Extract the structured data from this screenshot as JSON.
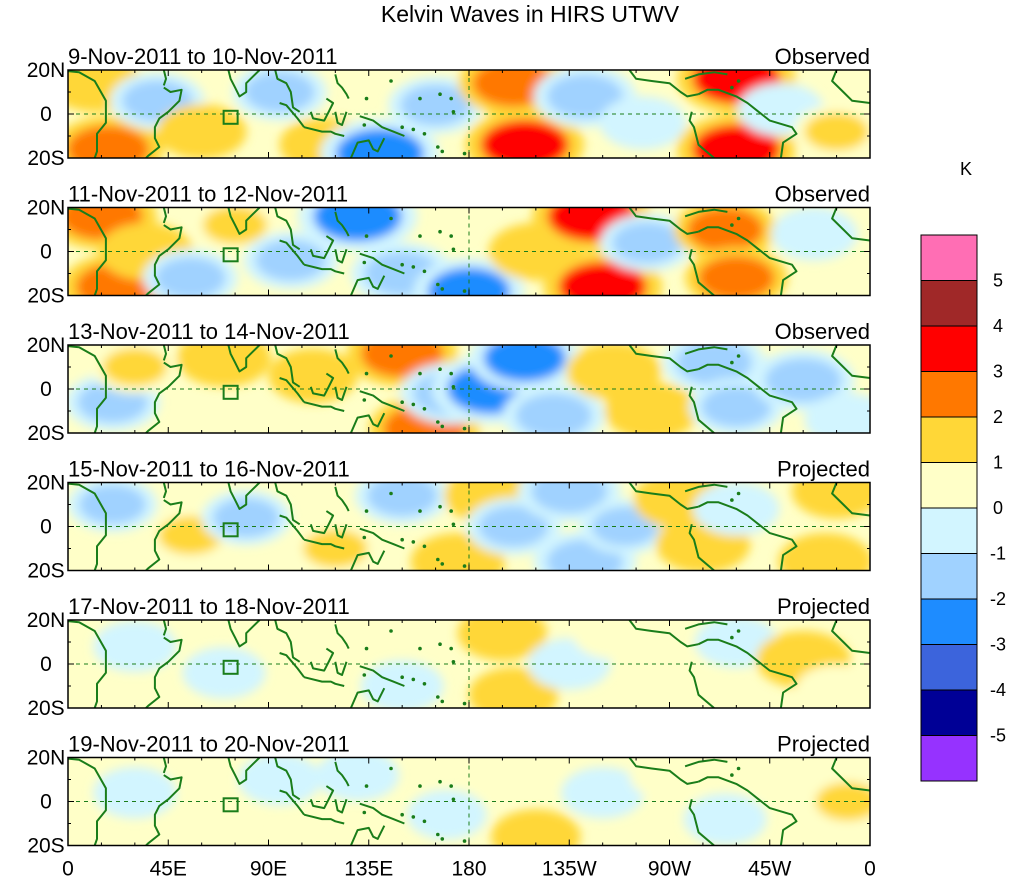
{
  "chart_data": {
    "type": "heatmap",
    "title": "Kelvin Waves in HIRS UTWV",
    "units": "K",
    "xlabel": "",
    "ylabel": "",
    "x_ticks": [
      "0",
      "45E",
      "90E",
      "135E",
      "180",
      "135W",
      "90W",
      "45W",
      "0"
    ],
    "y_ticks": [
      "20N",
      "0",
      "20S"
    ],
    "xlim": [
      0,
      360
    ],
    "ylim": [
      -20,
      20
    ],
    "colorbar": {
      "labels": [
        "5",
        "4",
        "3",
        "2",
        "1",
        "0",
        "-1",
        "-2",
        "-3",
        "-4",
        "-5"
      ],
      "colors": [
        "#ff6eb4",
        "#a02828",
        "#ff0000",
        "#ff7800",
        "#ffd737",
        "#ffffc8",
        "#d2f5ff",
        "#a0d2ff",
        "#1e8cff",
        "#3c64dc",
        "#000096",
        "#9632ff"
      ]
    },
    "panels": [
      {
        "date_range": "9-Nov-2011 to 10-Nov-2011",
        "status": "Observed",
        "features": [
          {
            "lon": 12,
            "lat": 14,
            "value": 1.5
          },
          {
            "lon": 18,
            "lat": -16,
            "value": 2.5
          },
          {
            "lon": 40,
            "lat": 6,
            "value": -1.5
          },
          {
            "lon": 60,
            "lat": -8,
            "value": 1.2
          },
          {
            "lon": 95,
            "lat": 10,
            "value": -1.5
          },
          {
            "lon": 115,
            "lat": -14,
            "value": 1.2
          },
          {
            "lon": 140,
            "lat": -18,
            "value": -3
          },
          {
            "lon": 165,
            "lat": 4,
            "value": -1.5
          },
          {
            "lon": 200,
            "lat": 14,
            "value": 2.5
          },
          {
            "lon": 205,
            "lat": -14,
            "value": 3
          },
          {
            "lon": 232,
            "lat": 8,
            "value": -2
          },
          {
            "lon": 258,
            "lat": -4,
            "value": -1
          },
          {
            "lon": 300,
            "lat": 16,
            "value": 3
          },
          {
            "lon": 300,
            "lat": -16,
            "value": 3
          },
          {
            "lon": 320,
            "lat": 2,
            "value": -1
          },
          {
            "lon": 345,
            "lat": -8,
            "value": 1
          }
        ]
      },
      {
        "date_range": "11-Nov-2011 to 12-Nov-2011",
        "status": "Observed",
        "features": [
          {
            "lon": 15,
            "lat": 16,
            "value": 2.5
          },
          {
            "lon": 22,
            "lat": -16,
            "value": 2.5
          },
          {
            "lon": 35,
            "lat": 0,
            "value": 1.5
          },
          {
            "lon": 55,
            "lat": -12,
            "value": -1.5
          },
          {
            "lon": 75,
            "lat": 12,
            "value": 1
          },
          {
            "lon": 100,
            "lat": -4,
            "value": -1.5
          },
          {
            "lon": 130,
            "lat": 16,
            "value": -3
          },
          {
            "lon": 150,
            "lat": -10,
            "value": -2
          },
          {
            "lon": 180,
            "lat": -18,
            "value": -2.5
          },
          {
            "lon": 210,
            "lat": 0,
            "value": 1.5
          },
          {
            "lon": 235,
            "lat": 16,
            "value": 3
          },
          {
            "lon": 240,
            "lat": -16,
            "value": 3
          },
          {
            "lon": 260,
            "lat": 4,
            "value": -1.5
          },
          {
            "lon": 295,
            "lat": 10,
            "value": 2
          },
          {
            "lon": 300,
            "lat": -12,
            "value": 2
          },
          {
            "lon": 335,
            "lat": 8,
            "value": -1
          }
        ]
      },
      {
        "date_range": "13-Nov-2011 to 14-Nov-2011",
        "status": "Observed",
        "features": [
          {
            "lon": 20,
            "lat": -6,
            "value": -1.5
          },
          {
            "lon": 30,
            "lat": 10,
            "value": 1
          },
          {
            "lon": 70,
            "lat": 14,
            "value": 1.5
          },
          {
            "lon": 110,
            "lat": 6,
            "value": 1.2
          },
          {
            "lon": 150,
            "lat": 16,
            "value": 2.5
          },
          {
            "lon": 160,
            "lat": -18,
            "value": 2.5
          },
          {
            "lon": 172,
            "lat": -2,
            "value": -2
          },
          {
            "lon": 190,
            "lat": 0,
            "value": -3
          },
          {
            "lon": 205,
            "lat": 14,
            "value": -2.5
          },
          {
            "lon": 218,
            "lat": -12,
            "value": -2
          },
          {
            "lon": 245,
            "lat": 8,
            "value": 1.5
          },
          {
            "lon": 262,
            "lat": -10,
            "value": 1.5
          },
          {
            "lon": 290,
            "lat": 12,
            "value": -2
          },
          {
            "lon": 300,
            "lat": -8,
            "value": -1.5
          },
          {
            "lon": 330,
            "lat": 4,
            "value": -2
          },
          {
            "lon": 350,
            "lat": -14,
            "value": -1
          }
        ]
      },
      {
        "date_range": "15-Nov-2011 to 16-Nov-2011",
        "status": "Projected",
        "features": [
          {
            "lon": 20,
            "lat": 10,
            "value": -1.2
          },
          {
            "lon": 55,
            "lat": -4,
            "value": 1
          },
          {
            "lon": 80,
            "lat": 4,
            "value": -1.2
          },
          {
            "lon": 120,
            "lat": -10,
            "value": 1
          },
          {
            "lon": 150,
            "lat": 14,
            "value": -1.5
          },
          {
            "lon": 175,
            "lat": -16,
            "value": 1.5
          },
          {
            "lon": 190,
            "lat": 14,
            "value": 1.5
          },
          {
            "lon": 200,
            "lat": 0,
            "value": -1.5
          },
          {
            "lon": 225,
            "lat": 16,
            "value": -2
          },
          {
            "lon": 232,
            "lat": -16,
            "value": -2
          },
          {
            "lon": 250,
            "lat": 0,
            "value": -1.2
          },
          {
            "lon": 275,
            "lat": 12,
            "value": 1.5
          },
          {
            "lon": 285,
            "lat": -8,
            "value": 1.5
          },
          {
            "lon": 300,
            "lat": 8,
            "value": -1
          },
          {
            "lon": 340,
            "lat": -16,
            "value": 1.5
          },
          {
            "lon": 345,
            "lat": 16,
            "value": 1.2
          }
        ]
      },
      {
        "date_range": "17-Nov-2011 to 18-Nov-2011",
        "status": "Projected",
        "features": [
          {
            "lon": 30,
            "lat": 8,
            "value": -0.8
          },
          {
            "lon": 70,
            "lat": -4,
            "value": -0.8
          },
          {
            "lon": 110,
            "lat": 10,
            "value": 0.6
          },
          {
            "lon": 150,
            "lat": -10,
            "value": -0.8
          },
          {
            "lon": 195,
            "lat": 14,
            "value": 1.2
          },
          {
            "lon": 200,
            "lat": -14,
            "value": 1.2
          },
          {
            "lon": 225,
            "lat": 0,
            "value": -0.8
          },
          {
            "lon": 245,
            "lat": 14,
            "value": 0.8
          },
          {
            "lon": 270,
            "lat": -6,
            "value": 0.8
          },
          {
            "lon": 300,
            "lat": 10,
            "value": -0.8
          },
          {
            "lon": 330,
            "lat": 2,
            "value": 1.5
          },
          {
            "lon": 345,
            "lat": -12,
            "value": 0.8
          }
        ]
      },
      {
        "date_range": "19-Nov-2011 to 20-Nov-2011",
        "status": "Projected",
        "features": [
          {
            "lon": 30,
            "lat": 4,
            "value": -0.8
          },
          {
            "lon": 65,
            "lat": -8,
            "value": 0.6
          },
          {
            "lon": 95,
            "lat": 10,
            "value": -0.8
          },
          {
            "lon": 130,
            "lat": 12,
            "value": -0.8
          },
          {
            "lon": 170,
            "lat": -6,
            "value": -0.6
          },
          {
            "lon": 200,
            "lat": 12,
            "value": 0.8
          },
          {
            "lon": 210,
            "lat": -16,
            "value": 1.2
          },
          {
            "lon": 240,
            "lat": 4,
            "value": -0.8
          },
          {
            "lon": 270,
            "lat": 12,
            "value": 0.6
          },
          {
            "lon": 295,
            "lat": -8,
            "value": -0.8
          },
          {
            "lon": 325,
            "lat": 10,
            "value": 0.6
          },
          {
            "lon": 350,
            "lat": 0,
            "value": 1
          }
        ]
      }
    ]
  }
}
